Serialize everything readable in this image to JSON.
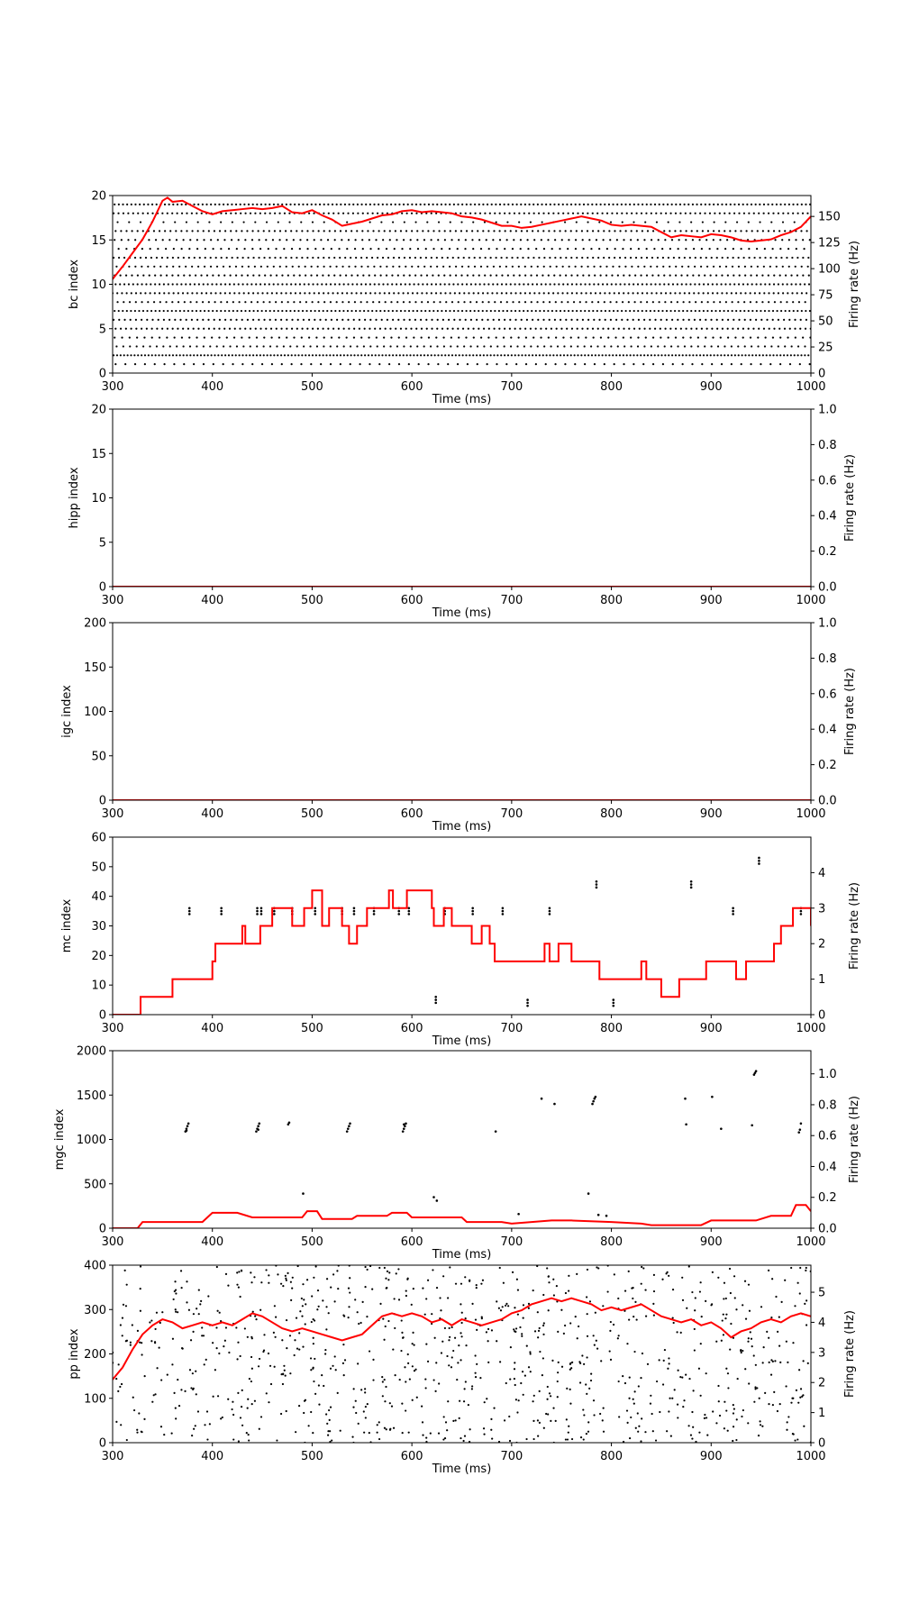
{
  "chart_data": [
    {
      "type": "scatter",
      "xlabel": "Time (ms)",
      "ylabel": "bc index",
      "y2label": "Firing rate (Hz)",
      "xlim": [
        300,
        1000
      ],
      "ylim": [
        0,
        20
      ],
      "y2lim": [
        0,
        170
      ],
      "xticks": [
        300,
        400,
        500,
        600,
        700,
        800,
        900,
        1000
      ],
      "yticks": [
        0,
        5,
        10,
        15,
        20
      ],
      "y2ticks": [
        0,
        25,
        50,
        75,
        100,
        125,
        150
      ],
      "spike_rows": [
        {
          "index": 1,
          "interval_ms": 9.8,
          "offset_ms": 3
        },
        {
          "index": 2,
          "interval_ms": 3.5,
          "offset_ms": 1
        },
        {
          "index": 3,
          "interval_ms": 6.7,
          "offset_ms": 4
        },
        {
          "index": 4,
          "interval_ms": 7.5,
          "offset_ms": 2
        },
        {
          "index": 5,
          "interval_ms": 5.2,
          "offset_ms": 3
        },
        {
          "index": 6,
          "interval_ms": 5.6,
          "offset_ms": 1
        },
        {
          "index": 7,
          "interval_ms": 4.1,
          "offset_ms": 2
        },
        {
          "index": 8,
          "interval_ms": 6.1,
          "offset_ms": 5
        },
        {
          "index": 9,
          "interval_ms": 4.7,
          "offset_ms": 0
        },
        {
          "index": 10,
          "interval_ms": 4.4,
          "offset_ms": 3
        },
        {
          "index": 11,
          "interval_ms": 5.8,
          "offset_ms": 2
        },
        {
          "index": 12,
          "interval_ms": 6.3,
          "offset_ms": 4
        },
        {
          "index": 13,
          "interval_ms": 5.4,
          "offset_ms": 1
        },
        {
          "index": 14,
          "interval_ms": 7.9,
          "offset_ms": 6
        },
        {
          "index": 15,
          "interval_ms": 6.9,
          "offset_ms": 2
        },
        {
          "index": 16,
          "interval_ms": 5.5,
          "offset_ms": 3
        },
        {
          "index": 17,
          "interval_ms": 11.5,
          "offset_ms": 5
        },
        {
          "index": 18,
          "interval_ms": 4.9,
          "offset_ms": 1
        },
        {
          "index": 19,
          "interval_ms": 4.2,
          "offset_ms": 2
        }
      ],
      "rate_line": {
        "color": "#ff0000",
        "x": [
          300,
          310,
          320,
          330,
          340,
          350,
          355,
          360,
          370,
          380,
          390,
          400,
          410,
          420,
          430,
          440,
          450,
          460,
          470,
          480,
          490,
          500,
          510,
          520,
          530,
          540,
          550,
          560,
          570,
          580,
          590,
          600,
          610,
          620,
          630,
          640,
          650,
          660,
          670,
          680,
          690,
          700,
          710,
          720,
          730,
          740,
          750,
          760,
          770,
          780,
          790,
          800,
          810,
          820,
          830,
          840,
          850,
          860,
          870,
          880,
          890,
          900,
          910,
          920,
          930,
          940,
          950,
          960,
          970,
          980,
          990,
          1000
        ],
        "y": [
          90,
          102,
          115,
          128,
          145,
          165,
          168,
          164,
          165,
          160,
          155,
          152,
          155,
          156,
          157,
          158,
          157,
          158,
          160,
          154,
          153,
          156,
          151,
          147,
          141,
          143,
          145,
          148,
          151,
          152,
          155,
          156,
          154,
          155,
          154,
          153,
          150,
          149,
          147,
          144,
          141,
          141,
          139,
          140,
          142,
          144,
          146,
          148,
          150,
          148,
          146,
          142,
          141,
          142,
          141,
          140,
          135,
          130,
          132,
          131,
          130,
          133,
          132,
          130,
          127,
          126,
          127,
          128,
          132,
          135,
          140,
          150
        ]
      }
    },
    {
      "type": "scatter",
      "xlabel": "Time (ms)",
      "ylabel": "hipp index",
      "y2label": "Firing rate (Hz)",
      "xlim": [
        300,
        1000
      ],
      "ylim": [
        0,
        20
      ],
      "y2lim": [
        0,
        1.0
      ],
      "xticks": [
        300,
        400,
        500,
        600,
        700,
        800,
        900,
        1000
      ],
      "yticks": [
        0,
        5,
        10,
        15,
        20
      ],
      "y2ticks": [
        0.0,
        0.2,
        0.4,
        0.6,
        0.8,
        1.0
      ],
      "points": [],
      "rate_line": {
        "color": "#ff0000",
        "x": [
          300,
          1000
        ],
        "y": [
          0,
          0
        ]
      }
    },
    {
      "type": "scatter",
      "xlabel": "Time (ms)",
      "ylabel": "igc index",
      "y2label": "Firing rate (Hz)",
      "xlim": [
        300,
        1000
      ],
      "ylim": [
        0,
        200
      ],
      "y2lim": [
        0,
        1.0
      ],
      "xticks": [
        300,
        400,
        500,
        600,
        700,
        800,
        900,
        1000
      ],
      "yticks": [
        0,
        50,
        100,
        150,
        200
      ],
      "y2ticks": [
        0.0,
        0.2,
        0.4,
        0.6,
        0.8,
        1.0
      ],
      "points": [],
      "rate_line": {
        "color": "#ff0000",
        "x": [
          300,
          1000
        ],
        "y": [
          0,
          0
        ]
      }
    },
    {
      "type": "scatter",
      "xlabel": "Time (ms)",
      "ylabel": "mc index",
      "y2label": "Firing rate (Hz)",
      "xlim": [
        300,
        1000
      ],
      "ylim": [
        0,
        60
      ],
      "y2lim": [
        0,
        5
      ],
      "xticks": [
        300,
        400,
        500,
        600,
        700,
        800,
        900,
        1000
      ],
      "yticks": [
        0,
        10,
        20,
        30,
        40,
        50,
        60
      ],
      "y2ticks": [
        0,
        1,
        2,
        3,
        4
      ],
      "points": [
        [
          377,
          34
        ],
        [
          377,
          35
        ],
        [
          377,
          36
        ],
        [
          409,
          34
        ],
        [
          409,
          35
        ],
        [
          409,
          36
        ],
        [
          445,
          34
        ],
        [
          445,
          35
        ],
        [
          445,
          36
        ],
        [
          449,
          34
        ],
        [
          449,
          35
        ],
        [
          449,
          36
        ],
        [
          462,
          34
        ],
        [
          462,
          35
        ],
        [
          462,
          36
        ],
        [
          480,
          34
        ],
        [
          480,
          35
        ],
        [
          480,
          36
        ],
        [
          503,
          34
        ],
        [
          503,
          35
        ],
        [
          503,
          36
        ],
        [
          530,
          34
        ],
        [
          530,
          35
        ],
        [
          530,
          36
        ],
        [
          542,
          34
        ],
        [
          542,
          35
        ],
        [
          542,
          36
        ],
        [
          562,
          34
        ],
        [
          562,
          35
        ],
        [
          562,
          36
        ],
        [
          587,
          34
        ],
        [
          587,
          35
        ],
        [
          587,
          36
        ],
        [
          597,
          34
        ],
        [
          597,
          35
        ],
        [
          597,
          36
        ],
        [
          624,
          4
        ],
        [
          624,
          5
        ],
        [
          624,
          6
        ],
        [
          633,
          34
        ],
        [
          633,
          35
        ],
        [
          633,
          36
        ],
        [
          661,
          34
        ],
        [
          661,
          35
        ],
        [
          661,
          36
        ],
        [
          691,
          34
        ],
        [
          691,
          35
        ],
        [
          691,
          36
        ],
        [
          716,
          3
        ],
        [
          716,
          4
        ],
        [
          716,
          5
        ],
        [
          738,
          34
        ],
        [
          738,
          35
        ],
        [
          738,
          36
        ],
        [
          785,
          43
        ],
        [
          785,
          44
        ],
        [
          785,
          45
        ],
        [
          802,
          3
        ],
        [
          802,
          4
        ],
        [
          802,
          5
        ],
        [
          880,
          43
        ],
        [
          880,
          44
        ],
        [
          880,
          45
        ],
        [
          922,
          34
        ],
        [
          922,
          35
        ],
        [
          922,
          36
        ],
        [
          948,
          51
        ],
        [
          948,
          52
        ],
        [
          948,
          53
        ],
        [
          990,
          34
        ],
        [
          990,
          35
        ],
        [
          990,
          36
        ]
      ],
      "rate_line": {
        "color": "#ff0000",
        "step": true,
        "x": [
          300,
          328,
          360,
          400,
          403,
          430,
          433,
          448,
          460,
          480,
          492,
          500,
          510,
          517,
          530,
          537,
          545,
          555,
          577,
          581,
          595,
          620,
          622,
          632,
          640,
          660,
          670,
          678,
          683,
          708,
          733,
          738,
          747,
          760,
          788,
          830,
          835,
          850,
          868,
          895,
          925,
          935,
          963,
          970,
          982,
          1000
        ],
        "y": [
          0,
          0.5,
          1,
          1.5,
          2,
          2.5,
          2,
          2.5,
          3,
          2.5,
          3,
          3.5,
          2.5,
          3,
          2.5,
          2,
          2.5,
          3,
          3.5,
          3,
          3.5,
          3,
          2.5,
          3,
          2.5,
          2,
          2.5,
          2,
          1.5,
          1.5,
          2,
          1.5,
          2,
          1.5,
          1,
          1.5,
          1,
          0.5,
          1,
          1.5,
          1,
          1.5,
          2,
          2.5,
          3,
          2.5
        ]
      }
    },
    {
      "type": "scatter",
      "xlabel": "Time (ms)",
      "ylabel": "mgc index",
      "y2label": "Firing rate (Hz)",
      "xlim": [
        300,
        1000
      ],
      "ylim": [
        0,
        2000
      ],
      "y2lim": [
        0,
        1.15
      ],
      "xticks": [
        300,
        400,
        500,
        600,
        700,
        800,
        900,
        1000
      ],
      "yticks": [
        0,
        500,
        1000,
        1500,
        2000
      ],
      "y2ticks": [
        0.0,
        0.2,
        0.4,
        0.6,
        0.8,
        1.0
      ],
      "points": [
        [
          373,
          1090
        ],
        [
          374,
          1120
        ],
        [
          375,
          1150
        ],
        [
          376,
          1180
        ],
        [
          374,
          1100
        ],
        [
          444,
          1090
        ],
        [
          445,
          1120
        ],
        [
          446,
          1150
        ],
        [
          447,
          1180
        ],
        [
          446,
          1110
        ],
        [
          476,
          1170
        ],
        [
          477,
          1190
        ],
        [
          491,
          390
        ],
        [
          535,
          1090
        ],
        [
          536,
          1120
        ],
        [
          537,
          1150
        ],
        [
          538,
          1180
        ],
        [
          591,
          1090
        ],
        [
          592,
          1120
        ],
        [
          593,
          1150
        ],
        [
          594,
          1180
        ],
        [
          592,
          1170
        ],
        [
          622,
          350
        ],
        [
          625,
          310
        ],
        [
          684,
          1090
        ],
        [
          707,
          160
        ],
        [
          730,
          1460
        ],
        [
          743,
          1400
        ],
        [
          777,
          390
        ],
        [
          781,
          1400
        ],
        [
          782,
          1430
        ],
        [
          783,
          1460
        ],
        [
          784,
          1480
        ],
        [
          787,
          150
        ],
        [
          795,
          140
        ],
        [
          874,
          1460
        ],
        [
          875,
          1170
        ],
        [
          901,
          1480
        ],
        [
          910,
          1120
        ],
        [
          941,
          1160
        ],
        [
          943,
          1730
        ],
        [
          944,
          1750
        ],
        [
          945,
          1770
        ],
        [
          988,
          1080
        ],
        [
          989,
          1110
        ],
        [
          990,
          1180
        ]
      ],
      "rate_line": {
        "color": "#ff0000",
        "x": [
          300,
          325,
          330,
          390,
          400,
          425,
          440,
          490,
          495,
          505,
          510,
          540,
          545,
          575,
          580,
          595,
          600,
          650,
          655,
          690,
          700,
          740,
          760,
          800,
          830,
          840,
          890,
          900,
          945,
          960,
          980,
          985,
          995,
          1000
        ],
        "y": [
          0,
          0,
          0.04,
          0.04,
          0.1,
          0.1,
          0.07,
          0.07,
          0.11,
          0.11,
          0.06,
          0.06,
          0.08,
          0.08,
          0.1,
          0.1,
          0.07,
          0.07,
          0.04,
          0.04,
          0.03,
          0.05,
          0.05,
          0.04,
          0.03,
          0.02,
          0.02,
          0.05,
          0.05,
          0.08,
          0.08,
          0.15,
          0.15,
          0.11
        ]
      }
    },
    {
      "type": "scatter",
      "xlabel": "Time (ms)",
      "ylabel": "pp index",
      "y2label": "Firing rate (Hz)",
      "xlim": [
        300,
        1000
      ],
      "ylim": [
        0,
        400
      ],
      "y2lim": [
        0,
        5.9
      ],
      "xticks": [
        300,
        400,
        500,
        600,
        700,
        800,
        900,
        1000
      ],
      "yticks": [
        0,
        100,
        200,
        300,
        400
      ],
      "y2ticks": [
        0,
        1,
        2,
        3,
        4,
        5
      ],
      "point_count": 950,
      "rate_line": {
        "color": "#ff0000",
        "x": [
          300,
          310,
          320,
          330,
          340,
          350,
          360,
          370,
          380,
          390,
          400,
          410,
          420,
          430,
          440,
          450,
          460,
          470,
          480,
          490,
          500,
          510,
          520,
          530,
          540,
          550,
          560,
          570,
          580,
          590,
          600,
          610,
          620,
          630,
          640,
          650,
          660,
          670,
          680,
          690,
          700,
          710,
          720,
          730,
          740,
          750,
          760,
          770,
          780,
          790,
          800,
          810,
          820,
          830,
          840,
          850,
          860,
          870,
          880,
          890,
          900,
          910,
          920,
          930,
          940,
          950,
          960,
          970,
          980,
          990,
          1000
        ],
        "y": [
          2.1,
          2.5,
          3.1,
          3.6,
          3.9,
          4.1,
          4.0,
          3.8,
          3.9,
          4.0,
          3.9,
          4.0,
          3.9,
          4.1,
          4.3,
          4.2,
          4.0,
          3.8,
          3.7,
          3.8,
          3.7,
          3.6,
          3.5,
          3.4,
          3.5,
          3.6,
          3.9,
          4.2,
          4.3,
          4.2,
          4.3,
          4.2,
          4.0,
          4.1,
          3.9,
          4.1,
          4.0,
          3.9,
          4.0,
          4.1,
          4.3,
          4.4,
          4.6,
          4.7,
          4.8,
          4.7,
          4.8,
          4.7,
          4.6,
          4.4,
          4.5,
          4.4,
          4.5,
          4.6,
          4.4,
          4.2,
          4.1,
          4.0,
          4.1,
          3.9,
          4.0,
          3.8,
          3.5,
          3.7,
          3.8,
          4.0,
          4.1,
          4.0,
          4.2,
          4.3,
          4.2
        ]
      }
    }
  ]
}
